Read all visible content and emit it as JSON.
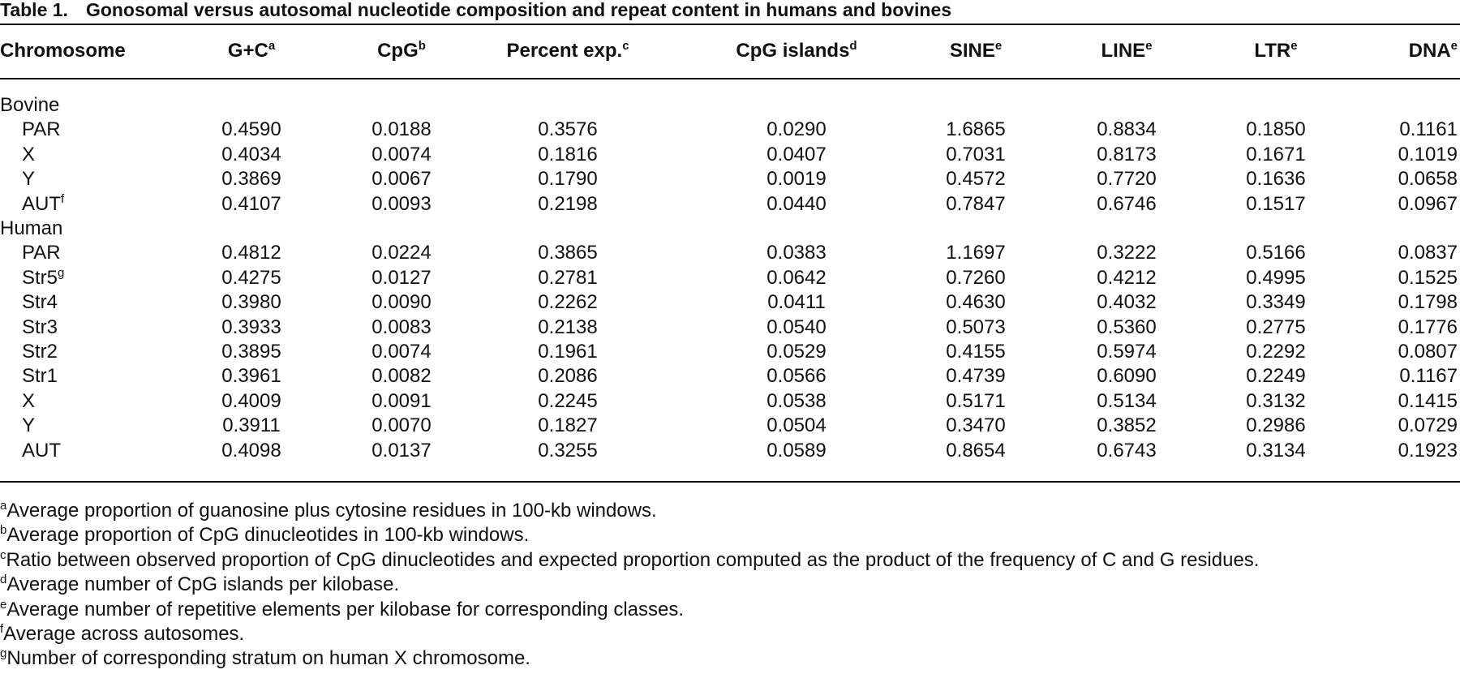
{
  "title": {
    "label": "Table 1.",
    "text": "Gonosomal versus autosomal nucleotide composition and repeat content in humans and bovines"
  },
  "columns": [
    {
      "name": "Chromosome"
    },
    {
      "name": "G+C",
      "note": "a"
    },
    {
      "name": "CpG",
      "note": "b"
    },
    {
      "name": "Percent exp.",
      "note": "c"
    },
    {
      "name": "CpG islands",
      "note": "d"
    },
    {
      "name": "SINE",
      "note": "e"
    },
    {
      "name": "LINE",
      "note": "e"
    },
    {
      "name": "LTR",
      "note": "e"
    },
    {
      "name": "DNA",
      "note": "e"
    }
  ],
  "groups": [
    {
      "name": "Bovine",
      "rows": [
        {
          "label": "PAR",
          "values": [
            "0.4590",
            "0.0188",
            "0.3576",
            "0.0290",
            "1.6865",
            "0.8834",
            "0.1850",
            "0.1161"
          ]
        },
        {
          "label": "X",
          "values": [
            "0.4034",
            "0.0074",
            "0.1816",
            "0.0407",
            "0.7031",
            "0.8173",
            "0.1671",
            "0.1019"
          ]
        },
        {
          "label": "Y",
          "values": [
            "0.3869",
            "0.0067",
            "0.1790",
            "0.0019",
            "0.4572",
            "0.7720",
            "0.1636",
            "0.0658"
          ]
        },
        {
          "label": "AUT",
          "note": "f",
          "values": [
            "0.4107",
            "0.0093",
            "0.2198",
            "0.0440",
            "0.7847",
            "0.6746",
            "0.1517",
            "0.0967"
          ]
        }
      ]
    },
    {
      "name": "Human",
      "rows": [
        {
          "label": "PAR",
          "values": [
            "0.4812",
            "0.0224",
            "0.3865",
            "0.0383",
            "1.1697",
            "0.3222",
            "0.5166",
            "0.0837"
          ]
        },
        {
          "label": "Str5",
          "note": "g",
          "values": [
            "0.4275",
            "0.0127",
            "0.2781",
            "0.0642",
            "0.7260",
            "0.4212",
            "0.4995",
            "0.1525"
          ]
        },
        {
          "label": "Str4",
          "values": [
            "0.3980",
            "0.0090",
            "0.2262",
            "0.0411",
            "0.4630",
            "0.4032",
            "0.3349",
            "0.1798"
          ]
        },
        {
          "label": "Str3",
          "values": [
            "0.3933",
            "0.0083",
            "0.2138",
            "0.0540",
            "0.5073",
            "0.5360",
            "0.2775",
            "0.1776"
          ]
        },
        {
          "label": "Str2",
          "values": [
            "0.3895",
            "0.0074",
            "0.1961",
            "0.0529",
            "0.4155",
            "0.5974",
            "0.2292",
            "0.0807"
          ]
        },
        {
          "label": "Str1",
          "values": [
            "0.3961",
            "0.0082",
            "0.2086",
            "0.0566",
            "0.4739",
            "0.6090",
            "0.2249",
            "0.1167"
          ]
        },
        {
          "label": "X",
          "values": [
            "0.4009",
            "0.0091",
            "0.2245",
            "0.0538",
            "0.5171",
            "0.5134",
            "0.3132",
            "0.1415"
          ]
        },
        {
          "label": "Y",
          "values": [
            "0.3911",
            "0.0070",
            "0.1827",
            "0.0504",
            "0.3470",
            "0.3852",
            "0.2986",
            "0.0729"
          ]
        },
        {
          "label": "AUT",
          "values": [
            "0.4098",
            "0.0137",
            "0.3255",
            "0.0589",
            "0.8654",
            "0.6743",
            "0.3134",
            "0.1923"
          ]
        }
      ]
    }
  ],
  "footnotes": [
    {
      "mark": "a",
      "text": "Average proportion of guanosine plus cytosine residues in 100-kb windows."
    },
    {
      "mark": "b",
      "text": "Average proportion of CpG dinucleotides in 100-kb windows."
    },
    {
      "mark": "c",
      "text": "Ratio between observed proportion of CpG dinucleotides and expected proportion computed as the product of the frequency of C and G residues."
    },
    {
      "mark": "d",
      "text": "Average number of CpG islands per kilobase."
    },
    {
      "mark": "e",
      "text": "Average number of repetitive elements per kilobase for corresponding classes."
    },
    {
      "mark": "f",
      "text": "Average across autosomes."
    },
    {
      "mark": "g",
      "text": "Number of corresponding stratum on human X chromosome."
    }
  ]
}
